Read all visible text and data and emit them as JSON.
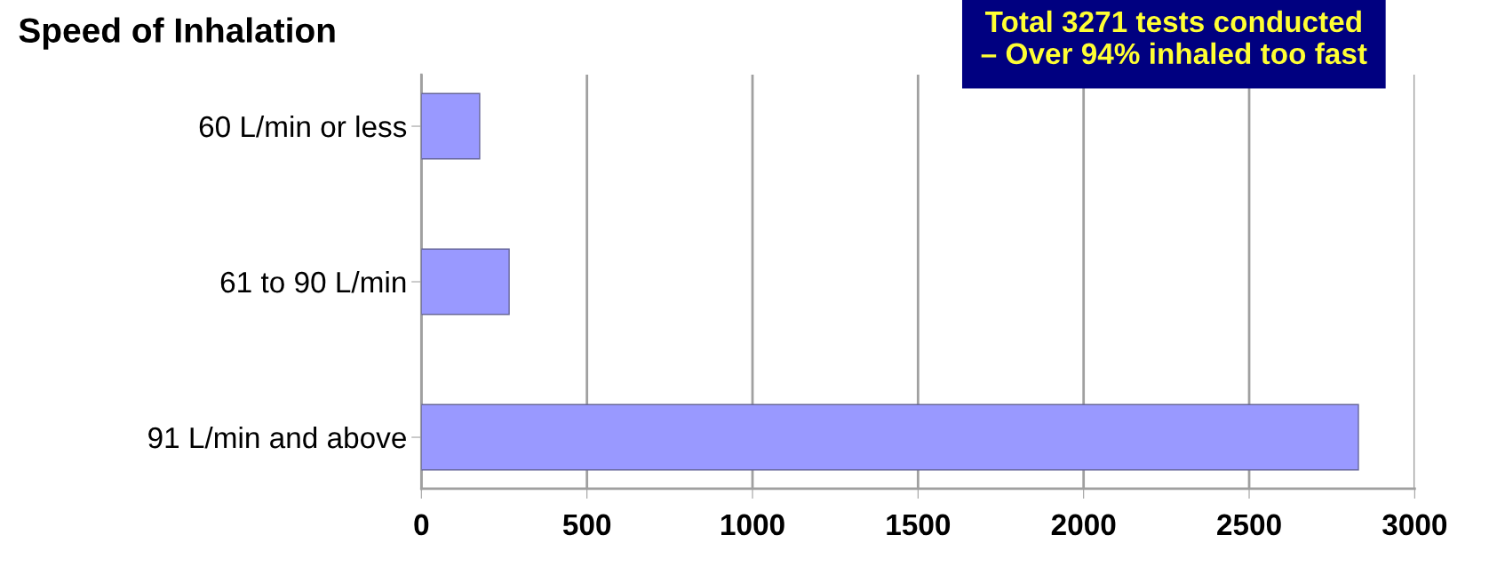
{
  "chart_data": {
    "type": "bar",
    "orientation": "horizontal",
    "title": "Speed of Inhalation",
    "categories": [
      "60 L/min or less",
      "61 to 90 L/min",
      "91 L/min and above"
    ],
    "values": [
      176,
      265,
      2830
    ],
    "color": "#9999ff",
    "xlim": [
      0,
      3000
    ],
    "xticks": [
      0,
      500,
      1000,
      1500,
      2000,
      2500,
      3000
    ],
    "grid": "x",
    "annotations": [
      "Total 3271 tests conducted\n– Over 94% inhaled too fast"
    ]
  }
}
